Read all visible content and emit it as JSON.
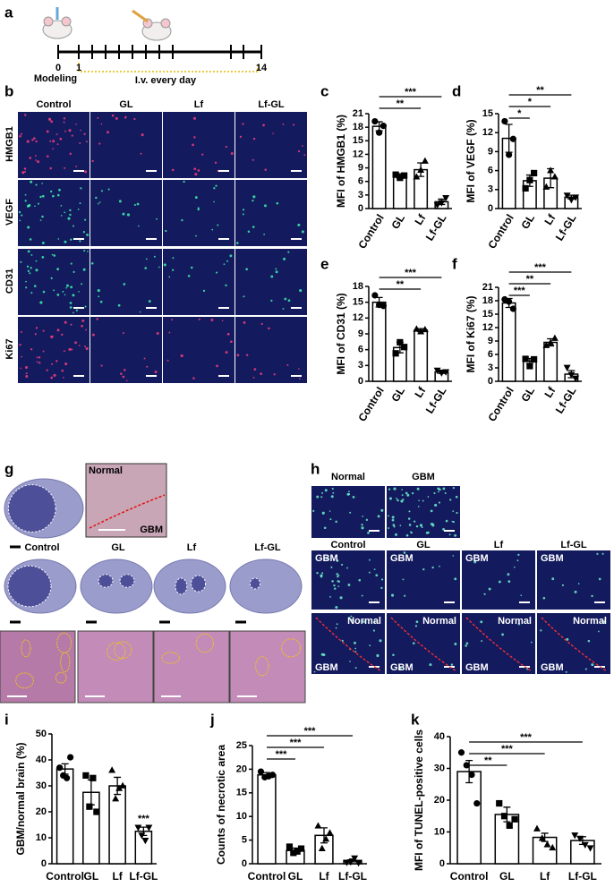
{
  "panel_labels": [
    "a",
    "b",
    "c",
    "d",
    "e",
    "f",
    "g",
    "h",
    "i",
    "j",
    "k"
  ],
  "timeline": {
    "ticks": [
      "0",
      "1",
      "14"
    ],
    "start_label": "Modeling",
    "treatment_label": "I.v. every day"
  },
  "panel_b": {
    "columns": [
      "Control",
      "GL",
      "Lf",
      "Lf-GL"
    ],
    "rows": [
      "HMGB1",
      "VEGF",
      "CD31",
      "Ki67"
    ]
  },
  "panel_g": {
    "inset_labels": [
      "Normal",
      "GBM"
    ],
    "columns": [
      "Control",
      "GL",
      "Lf",
      "Lf-GL"
    ]
  },
  "panel_h": {
    "top_columns": [
      "Normal",
      "GBM"
    ],
    "columns": [
      "Control",
      "GL",
      "Lf",
      "Lf-GL"
    ],
    "region_labels": [
      "GBM",
      "Normal"
    ]
  },
  "chart_data": [
    {
      "type": "bar",
      "ylabel": "MFI of HMGB1 (%)",
      "categories": [
        "Control",
        "GL",
        "Lf",
        "Lf-GL"
      ],
      "values": [
        18.2,
        7.2,
        8.6,
        1.5
      ],
      "errors": [
        1.0,
        0.5,
        1.5,
        0.6
      ],
      "points": [
        [
          19.3,
          16.8,
          18.3
        ],
        [
          7.5,
          6.8,
          7.3
        ],
        [
          7.0,
          8.5,
          10.5
        ],
        [
          0.8,
          1.3,
          2.4
        ]
      ],
      "markers": [
        "circle",
        "square",
        "triangle",
        "triangle-down"
      ],
      "ylim": [
        0,
        21
      ],
      "yticks": [
        0,
        3,
        6,
        9,
        12,
        15,
        18,
        21
      ],
      "significance": [
        {
          "groups": [
            "Control",
            "Lf"
          ],
          "label": "**"
        },
        {
          "groups": [
            "Control",
            "Lf-GL"
          ],
          "label": "***"
        }
      ],
      "color": "#000000"
    },
    {
      "type": "bar",
      "ylabel": "MFI of VEGF (%)",
      "categories": [
        "Control",
        "GL",
        "Lf",
        "Lf-GL"
      ],
      "values": [
        11.1,
        4.4,
        4.8,
        1.8
      ],
      "errors": [
        2.2,
        0.9,
        1.5,
        0.3
      ],
      "points": [
        [
          13.8,
          8.5,
          11
        ],
        [
          3.2,
          4.5,
          5.6
        ],
        [
          3.4,
          6,
          5
        ],
        [
          2.1,
          1.4,
          1.8
        ]
      ],
      "markers": [
        "circle",
        "square",
        "triangle",
        "triangle-down"
      ],
      "ylim": [
        0,
        15
      ],
      "yticks": [
        0,
        3,
        6,
        9,
        12,
        15
      ],
      "significance": [
        {
          "groups": [
            "Control",
            "GL"
          ],
          "label": "*"
        },
        {
          "groups": [
            "Control",
            "Lf"
          ],
          "label": "*"
        },
        {
          "groups": [
            "Control",
            "Lf-GL"
          ],
          "label": "**"
        }
      ],
      "color": "#000000"
    },
    {
      "type": "bar",
      "ylabel": "MFI of CD31 (%)",
      "categories": [
        "Control",
        "GL",
        "Lf",
        "Lf-GL"
      ],
      "values": [
        15,
        6.4,
        9.7,
        1.8
      ],
      "errors": [
        0.9,
        1.0,
        0.3,
        0.3
      ],
      "points": [
        [
          16.3,
          14.5,
          14.3
        ],
        [
          5.3,
          7.4,
          6.5
        ],
        [
          9.9,
          9.4,
          9.8
        ],
        [
          2.1,
          1.6,
          1.8
        ]
      ],
      "markers": [
        "circle",
        "square",
        "triangle",
        "triangle-down"
      ],
      "ylim": [
        0,
        18
      ],
      "yticks": [
        0,
        3,
        6,
        9,
        12,
        15,
        18
      ],
      "significance": [
        {
          "groups": [
            "Control",
            "Lf"
          ],
          "label": "**"
        },
        {
          "groups": [
            "Control",
            "Lf-GL"
          ],
          "label": "***"
        }
      ],
      "color": "#000000"
    },
    {
      "type": "bar",
      "ylabel": "MFI of Ki67 (%)",
      "categories": [
        "Control",
        "GL",
        "Lf",
        "Lf-GL"
      ],
      "values": [
        17.5,
        4.5,
        8.7,
        1.6
      ],
      "errors": [
        1.0,
        0.6,
        0.8,
        0.8
      ],
      "points": [
        [
          18.3,
          17.8,
          16.2
        ],
        [
          5,
          3.4,
          4.9
        ],
        [
          8,
          8.6,
          9.6
        ],
        [
          3.1,
          1.5,
          0.7
        ]
      ],
      "markers": [
        "circle",
        "square",
        "triangle",
        "triangle-down"
      ],
      "ylim": [
        0,
        21
      ],
      "yticks": [
        0,
        3,
        6,
        9,
        12,
        15,
        18,
        21
      ],
      "significance": [
        {
          "groups": [
            "Control",
            "GL"
          ],
          "label": "***"
        },
        {
          "groups": [
            "Control",
            "Lf"
          ],
          "label": "**"
        },
        {
          "groups": [
            "Control",
            "Lf-GL"
          ],
          "label": "***"
        }
      ],
      "color": "#000000"
    },
    {
      "type": "bar",
      "ylabel": "GBM/normal brain (%)",
      "categories": [
        "Control",
        "GL",
        "Lf",
        "Lf-GL"
      ],
      "values": [
        36.5,
        27.5,
        30,
        12.5
      ],
      "errors": [
        2.0,
        4.8,
        3.3,
        1.6
      ],
      "points": [
        [
          37,
          34,
          33,
          41
        ],
        [
          34,
          22,
          33,
          20
        ],
        [
          36,
          25,
          29,
          30
        ],
        [
          14,
          11,
          9,
          14
        ]
      ],
      "markers": [
        "circle",
        "square",
        "triangle",
        "triangle-down"
      ],
      "ylim": [
        0,
        50
      ],
      "yticks": [
        0,
        10,
        20,
        30,
        40,
        50
      ],
      "significance": [
        {
          "groups": [
            "Lf-GL"
          ],
          "label": "***"
        }
      ],
      "color": "#000000"
    },
    {
      "type": "bar",
      "ylabel": "Counts of necrotic area",
      "categories": [
        "Control",
        "GL",
        "Lf",
        "Lf-GL"
      ],
      "values": [
        18.8,
        2.8,
        6,
        0.7
      ],
      "errors": [
        0.5,
        0.5,
        1.6,
        0.3
      ],
      "points": [
        [
          19.5,
          18.3,
          18.5,
          18.8
        ],
        [
          3.6,
          2.3,
          2.6,
          3.2
        ],
        [
          8,
          3.2,
          5.2,
          6.5
        ],
        [
          0.3,
          0.4,
          1.2,
          0.2
        ]
      ],
      "markers": [
        "circle",
        "square",
        "triangle",
        "triangle-down"
      ],
      "ylim": [
        0,
        25
      ],
      "yticks": [
        0,
        5,
        10,
        15,
        20,
        25
      ],
      "significance": [
        {
          "groups": [
            "Control",
            "GL"
          ],
          "label": "***"
        },
        {
          "groups": [
            "Control",
            "Lf"
          ],
          "label": "***"
        },
        {
          "groups": [
            "Control",
            "Lf-GL"
          ],
          "label": "***"
        }
      ],
      "color": "#000000"
    },
    {
      "type": "bar",
      "ylabel": "MFI of TUNEL-positive cells",
      "categories": [
        "Control",
        "GL",
        "Lf",
        "Lf-GL"
      ],
      "values": [
        29,
        15.5,
        8.3,
        7.3
      ],
      "errors": [
        3.5,
        2.3,
        1.3,
        1.2
      ],
      "points": [
        [
          35,
          31,
          28,
          19
        ],
        [
          19,
          15,
          12,
          14
        ],
        [
          11,
          8,
          6,
          5
        ],
        [
          9,
          8,
          6,
          5
        ]
      ],
      "markers": [
        "circle",
        "square",
        "triangle",
        "triangle-down"
      ],
      "ylim": [
        0,
        40
      ],
      "yticks": [
        0,
        10,
        20,
        30,
        40
      ],
      "significance": [
        {
          "groups": [
            "Control",
            "GL"
          ],
          "label": "**"
        },
        {
          "groups": [
            "Control",
            "Lf"
          ],
          "label": "***"
        },
        {
          "groups": [
            "Control",
            "Lf-GL"
          ],
          "label": "***"
        }
      ],
      "color": "#000000"
    }
  ]
}
